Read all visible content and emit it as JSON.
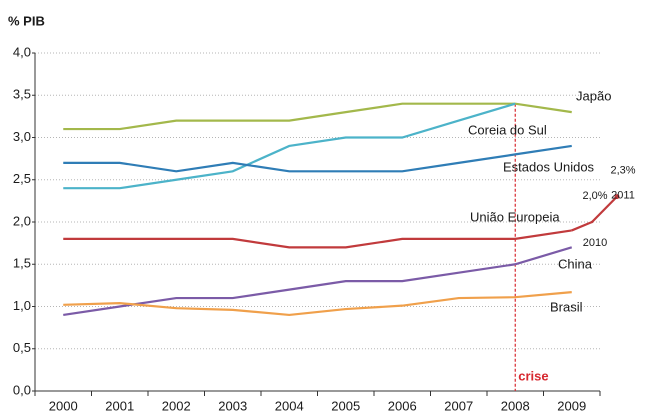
{
  "chart_data": {
    "type": "line",
    "ylabel": "% PIB",
    "categories": [
      "2000",
      "2001",
      "2002",
      "2003",
      "2004",
      "2005",
      "2006",
      "2007",
      "2008",
      "2009"
    ],
    "ylim": [
      0,
      4
    ],
    "yticks": [
      {
        "value": 0,
        "label": "0,0"
      },
      {
        "value": 0.5,
        "label": "0,5"
      },
      {
        "value": 1,
        "label": "1,0"
      },
      {
        "value": 1.5,
        "label": "1,5"
      },
      {
        "value": 2,
        "label": "2,0"
      },
      {
        "value": 2.5,
        "label": "2,5"
      },
      {
        "value": 3,
        "label": "3,0"
      },
      {
        "value": 3.5,
        "label": "3,5"
      },
      {
        "value": 4,
        "label": "4,0"
      }
    ],
    "grid": true,
    "series": [
      {
        "name": "Japão",
        "color": "#a3b84b",
        "values": [
          3.1,
          3.1,
          3.2,
          3.2,
          3.2,
          3.3,
          3.4,
          3.4,
          3.4,
          3.3
        ]
      },
      {
        "name": "Coreia do Sul",
        "color": "#4cb3c9",
        "values": [
          2.4,
          2.4,
          2.5,
          2.6,
          2.9,
          3.0,
          3.0,
          3.2,
          3.4,
          null
        ]
      },
      {
        "name": "Estados Unidos",
        "color": "#2f7db6",
        "values": [
          2.7,
          2.7,
          2.6,
          2.7,
          2.6,
          2.6,
          2.6,
          2.7,
          2.8,
          2.9
        ]
      },
      {
        "name": "União Europeia",
        "color": "#c13a3c",
        "values": [
          1.8,
          1.8,
          1.8,
          1.8,
          1.7,
          1.7,
          1.8,
          1.8,
          1.8,
          1.9
        ],
        "extension": [
          {
            "year": "2010",
            "value": 2.0,
            "label": "2,0%"
          },
          {
            "year": "2011",
            "value": 2.3,
            "label": "2,3%"
          }
        ]
      },
      {
        "name": "China",
        "color": "#7b5ba7",
        "values": [
          0.9,
          1.0,
          1.1,
          1.1,
          1.2,
          1.3,
          1.3,
          1.4,
          1.5,
          1.7
        ]
      },
      {
        "name": "Brasil",
        "color": "#f0a04b",
        "values": [
          1.02,
          1.04,
          0.98,
          0.96,
          0.9,
          0.97,
          1.01,
          1.1,
          1.11,
          1.17
        ]
      }
    ],
    "crisis": {
      "x": "2008",
      "label": "crise",
      "color": "#d7282f"
    }
  }
}
